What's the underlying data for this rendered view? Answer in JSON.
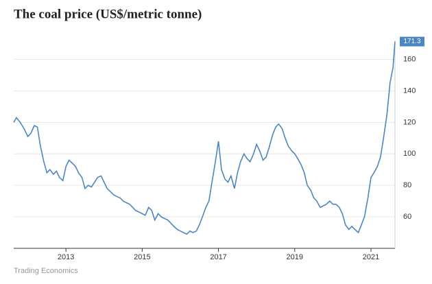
{
  "chart_data": {
    "type": "line",
    "title": "The coal price (US$/metric tonne)",
    "source": "Trading Economics",
    "x": [
      2011.63,
      2011.7,
      2011.8,
      2011.9,
      2012.0,
      2012.08,
      2012.17,
      2012.25,
      2012.33,
      2012.42,
      2012.5,
      2012.58,
      2012.67,
      2012.75,
      2012.83,
      2012.92,
      2013.0,
      2013.08,
      2013.17,
      2013.25,
      2013.33,
      2013.42,
      2013.5,
      2013.58,
      2013.67,
      2013.75,
      2013.83,
      2013.92,
      2014.0,
      2014.08,
      2014.17,
      2014.25,
      2014.33,
      2014.42,
      2014.5,
      2014.58,
      2014.67,
      2014.75,
      2014.83,
      2014.92,
      2015.0,
      2015.08,
      2015.17,
      2015.25,
      2015.33,
      2015.42,
      2015.5,
      2015.58,
      2015.67,
      2015.75,
      2015.83,
      2015.92,
      2016.0,
      2016.08,
      2016.17,
      2016.25,
      2016.33,
      2016.42,
      2016.5,
      2016.58,
      2016.67,
      2016.75,
      2016.83,
      2016.92,
      2017.0,
      2017.08,
      2017.17,
      2017.25,
      2017.33,
      2017.42,
      2017.5,
      2017.58,
      2017.67,
      2017.75,
      2017.83,
      2017.92,
      2018.0,
      2018.08,
      2018.17,
      2018.25,
      2018.33,
      2018.42,
      2018.5,
      2018.58,
      2018.67,
      2018.75,
      2018.83,
      2018.92,
      2019.0,
      2019.08,
      2019.17,
      2019.25,
      2019.33,
      2019.42,
      2019.5,
      2019.58,
      2019.67,
      2019.75,
      2019.83,
      2019.92,
      2020.0,
      2020.08,
      2020.17,
      2020.25,
      2020.33,
      2020.42,
      2020.5,
      2020.58,
      2020.67,
      2020.75,
      2020.83,
      2020.92,
      2021.0,
      2021.08,
      2021.17,
      2021.25,
      2021.33,
      2021.42,
      2021.5,
      2021.58,
      2021.63
    ],
    "values": [
      120,
      123,
      120,
      116,
      111,
      113,
      118,
      117,
      105,
      95,
      88,
      90,
      87,
      89,
      85,
      83,
      92,
      96,
      94,
      92,
      88,
      85,
      78,
      80,
      79,
      82,
      85,
      86,
      82,
      78,
      76,
      74,
      73,
      72,
      70,
      69,
      68,
      66,
      64,
      63,
      62,
      61,
      66,
      64,
      58,
      62,
      60,
      59,
      58,
      56,
      54,
      52,
      51,
      50,
      49,
      51,
      50,
      51,
      55,
      60,
      66,
      70,
      82,
      95,
      108,
      90,
      84,
      82,
      86,
      78,
      88,
      95,
      100,
      97,
      95,
      100,
      106,
      102,
      96,
      98,
      104,
      112,
      117,
      119,
      116,
      110,
      105,
      102,
      100,
      97,
      93,
      88,
      80,
      77,
      72,
      70,
      66,
      67,
      68,
      70,
      68,
      68,
      66,
      62,
      55,
      52,
      54,
      52,
      50,
      55,
      60,
      72,
      85,
      88,
      92,
      98,
      110,
      125,
      145,
      155,
      171.3
    ],
    "color": "#4a86c5",
    "xlim": [
      2011.63,
      2021.63
    ],
    "xticks": [
      2013,
      2015,
      2017,
      2019,
      2021
    ],
    "ylim": [
      40,
      172
    ],
    "yticks": [
      60,
      80,
      100,
      120,
      140,
      160
    ],
    "grid": true
  }
}
